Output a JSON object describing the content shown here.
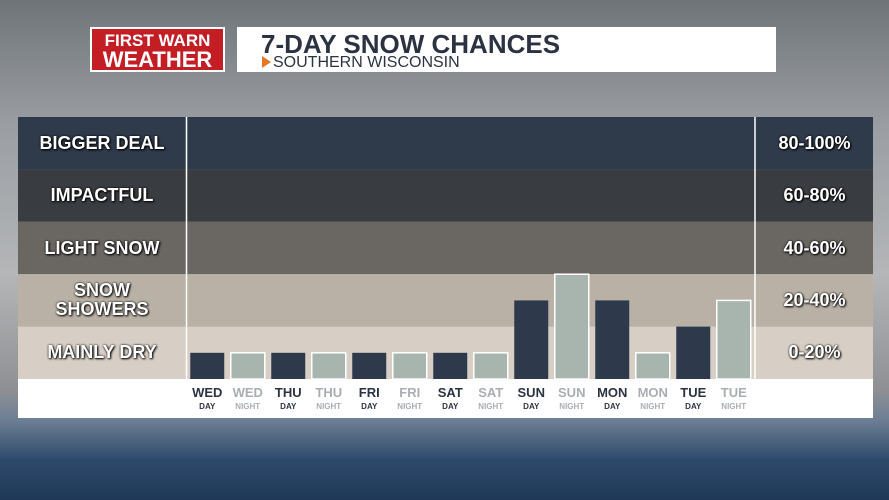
{
  "logo": {
    "line1": "FIRST WARN",
    "line2": "WEATHER"
  },
  "chart_data": {
    "type": "bar",
    "title": "7-DAY SNOW CHANCES",
    "subtitle": "SOUTHERN WISCONSIN",
    "categories": [
      "WED",
      "WED",
      "THU",
      "THU",
      "FRI",
      "FRI",
      "SAT",
      "SAT",
      "SUN",
      "SUN",
      "MON",
      "MON",
      "TUE",
      "TUE"
    ],
    "periods": [
      "DAY",
      "NIGHT",
      "DAY",
      "NIGHT",
      "DAY",
      "NIGHT",
      "DAY",
      "NIGHT",
      "DAY",
      "NIGHT",
      "DAY",
      "NIGHT",
      "DAY",
      "NIGHT"
    ],
    "values": [
      10,
      10,
      10,
      10,
      10,
      10,
      10,
      10,
      30,
      40,
      30,
      10,
      20,
      30
    ],
    "color_day": "#2e3a4c",
    "color_night": "#a8b5ae",
    "ylim": [
      0,
      100
    ],
    "bands": [
      {
        "label": "BIGGER DEAL",
        "range_label": "80-100%",
        "from": 80,
        "to": 100,
        "color": "#2f3a4b"
      },
      {
        "label": "IMPACTFUL",
        "range_label": "60-80%",
        "from": 60,
        "to": 80,
        "color": "#393c41"
      },
      {
        "label": "LIGHT SNOW",
        "range_label": "40-60%",
        "from": 40,
        "to": 60,
        "color": "#6a6762"
      },
      {
        "label": "SNOW SHOWERS",
        "range_label": "20-40%",
        "from": 20,
        "to": 40,
        "color": "#b9b1a6"
      },
      {
        "label": "MAINLY DRY",
        "range_label": "0-20%",
        "from": 0,
        "to": 20,
        "color": "#d7cfc5"
      }
    ]
  }
}
